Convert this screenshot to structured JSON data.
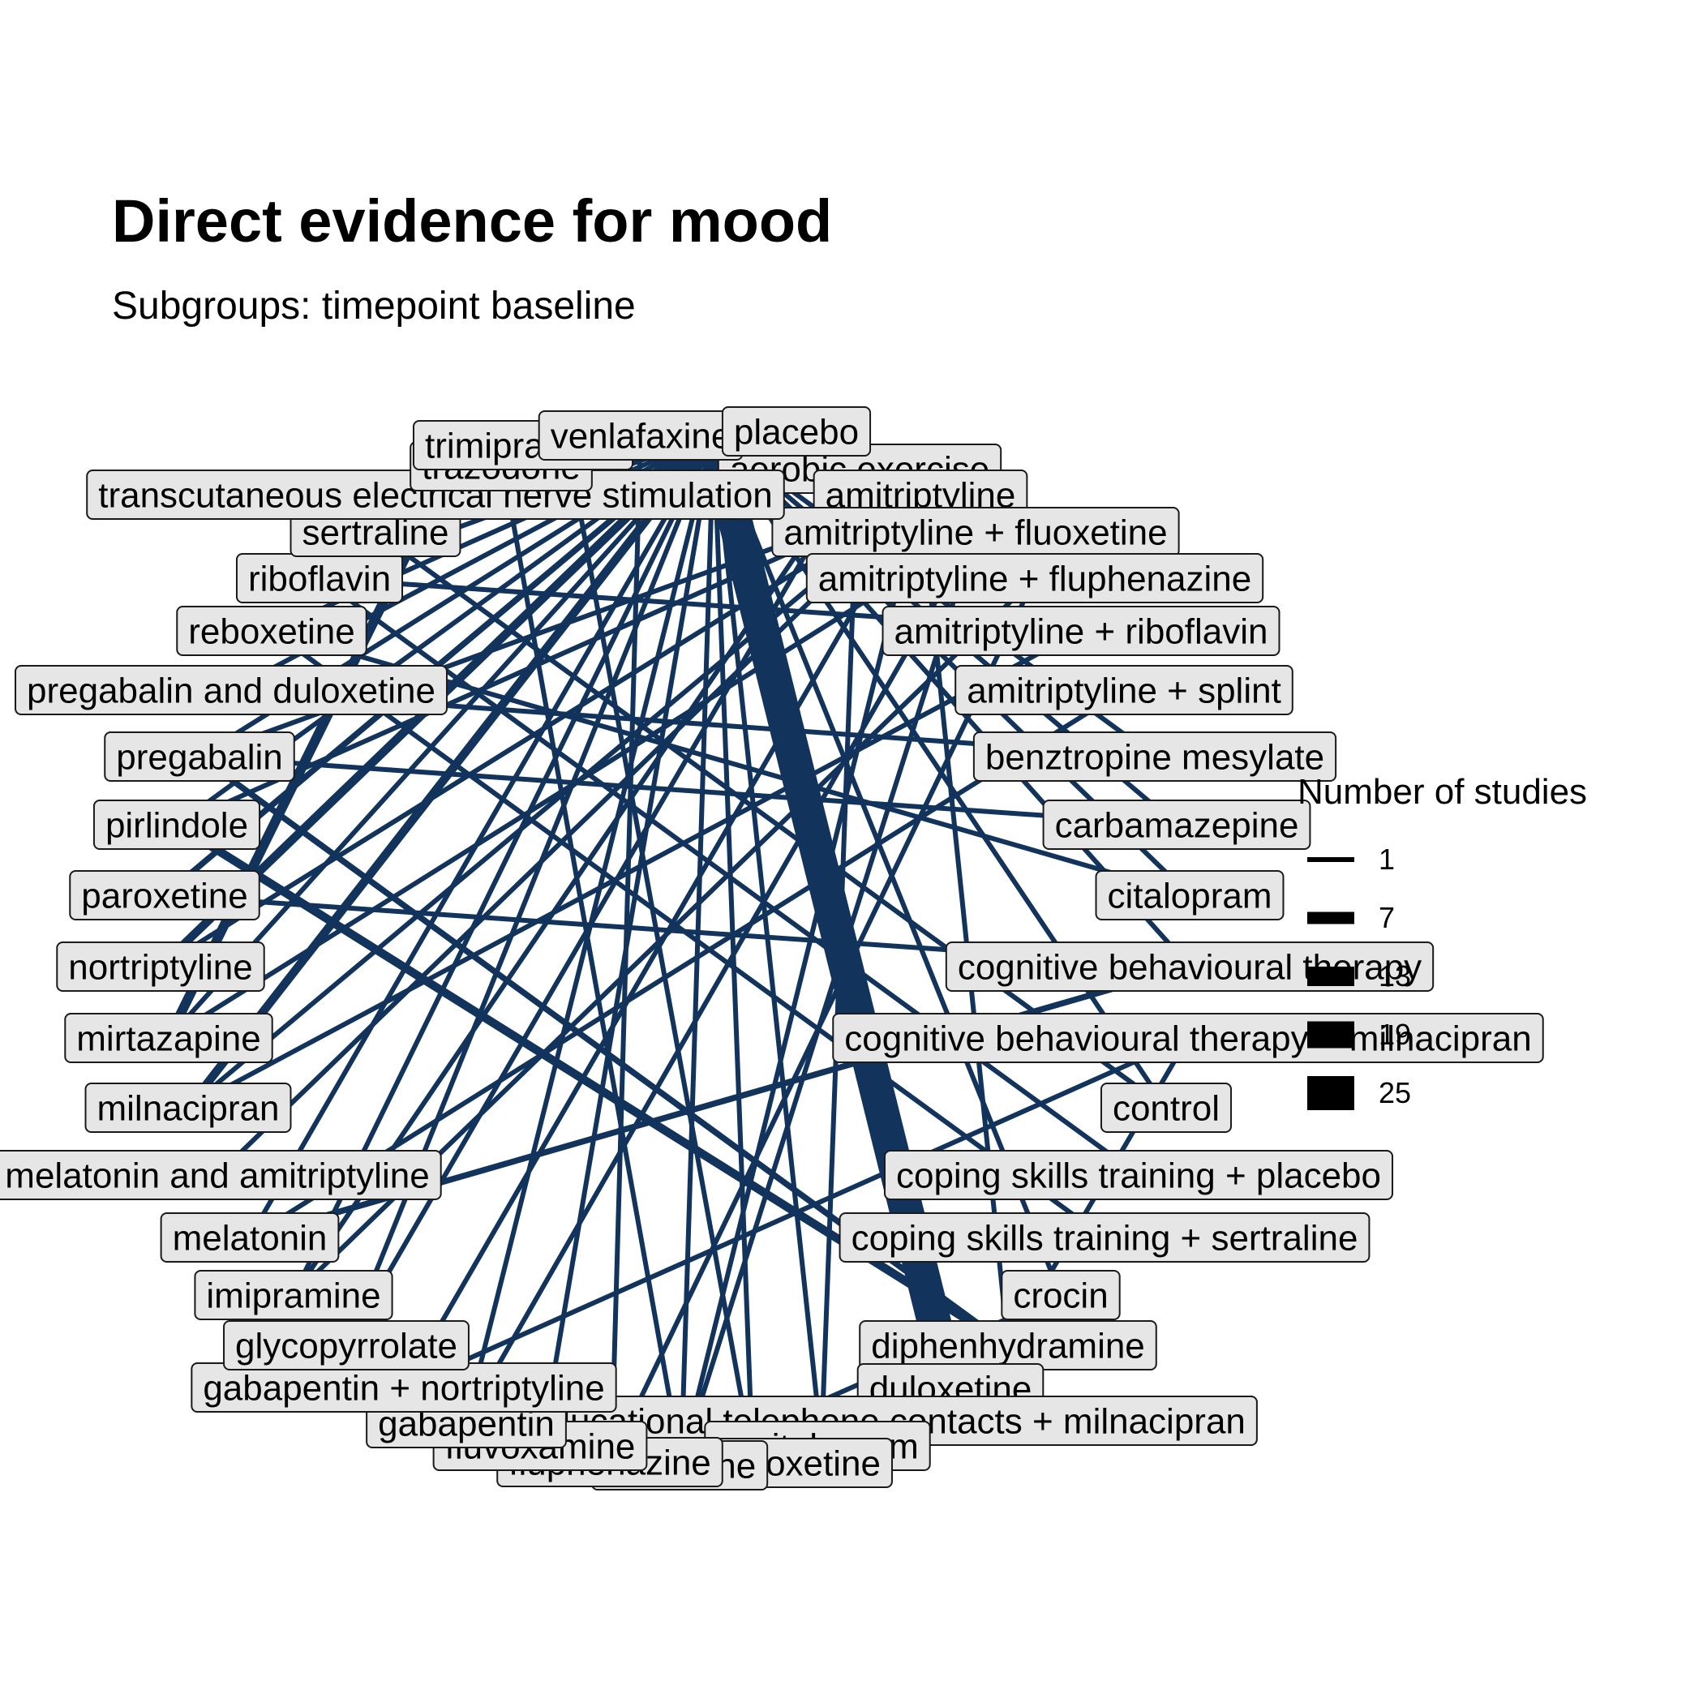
{
  "title": "Direct evidence for mood",
  "subtitle": "Subgroups: timepoint baseline",
  "legend": {
    "title": "Number of studies",
    "entries": [
      "1",
      "7",
      "13",
      "19",
      "25"
    ]
  },
  "colors": {
    "edge": "#12335b",
    "label_fill": "#e6e6e6",
    "label_border": "#1a1a1a"
  },
  "nodes": [
    "aerobic exercise",
    "amitriptyline",
    "amitriptyline + fluoxetine",
    "amitriptyline + fluphenazine",
    "amitriptyline + riboflavin",
    "amitriptyline + splint",
    "benztropine mesylate",
    "carbamazepine",
    "citalopram",
    "cognitive behavioural therapy",
    "cognitive behavioural therapy + milnacipran",
    "control",
    "coping skills training + placebo",
    "coping skills training + sertraline",
    "crocin",
    "diphenhydramine",
    "duloxetine",
    "educational telephone contacts + milnacipran",
    "escitalopram",
    "esreboxetine",
    "fluoxetine",
    "fluphenazine",
    "fluvoxamine",
    "gabapentin",
    "gabapentin + nortriptyline",
    "glycopyrrolate",
    "imipramine",
    "melatonin",
    "melatonin and amitriptyline",
    "milnacipran",
    "mirtazapine",
    "nortriptyline",
    "paroxetine",
    "pirlindole",
    "pregabalin",
    "pregabalin and duloxetine",
    "reboxetine",
    "riboflavin",
    "sertraline",
    "transcutaneous electrical nerve stimulation",
    "trazodone",
    "trimipramine",
    "venlafaxine",
    "placebo"
  ],
  "edges": [
    {
      "from": "placebo",
      "to": "duloxetine",
      "studies": 25
    },
    {
      "from": "placebo",
      "to": "pregabalin",
      "studies": 1
    },
    {
      "from": "placebo",
      "to": "sertraline",
      "studies": 1
    },
    {
      "from": "placebo",
      "to": "riboflavin",
      "studies": 1
    },
    {
      "from": "placebo",
      "to": "reboxetine",
      "studies": 1
    },
    {
      "from": "placebo",
      "to": "pregabalin and duloxetine",
      "studies": 1
    },
    {
      "from": "placebo",
      "to": "pirlindole",
      "studies": 1
    },
    {
      "from": "placebo",
      "to": "paroxetine",
      "studies": 2
    },
    {
      "from": "placebo",
      "to": "nortriptyline",
      "studies": 4
    },
    {
      "from": "placebo",
      "to": "mirtazapine",
      "studies": 1
    },
    {
      "from": "placebo",
      "to": "milnacipran",
      "studies": 4
    },
    {
      "from": "placebo",
      "to": "melatonin",
      "studies": 1
    },
    {
      "from": "placebo",
      "to": "imipramine",
      "studies": 1
    },
    {
      "from": "placebo",
      "to": "glycopyrrolate",
      "studies": 1
    },
    {
      "from": "placebo",
      "to": "gabapentin",
      "studies": 1
    },
    {
      "from": "placebo",
      "to": "fluoxetine",
      "studies": 1
    },
    {
      "from": "placebo",
      "to": "esreboxetine",
      "studies": 1
    },
    {
      "from": "placebo",
      "to": "fluvoxamine",
      "studies": 1
    },
    {
      "from": "placebo",
      "to": "escitalopram",
      "studies": 1
    },
    {
      "from": "placebo",
      "to": "amitriptyline",
      "studies": 1
    },
    {
      "from": "placebo",
      "to": "citalopram",
      "studies": 1
    },
    {
      "from": "placebo",
      "to": "control",
      "studies": 1
    },
    {
      "from": "placebo",
      "to": "trazodone",
      "studies": 1
    },
    {
      "from": "placebo",
      "to": "venlafaxine",
      "studies": 1
    },
    {
      "from": "placebo",
      "to": "aerobic exercise",
      "studies": 1
    },
    {
      "from": "placebo",
      "to": "crocin",
      "studies": 1
    },
    {
      "from": "placebo",
      "to": "cognitive behavioural therapy",
      "studies": 1
    },
    {
      "from": "placebo",
      "to": "carbamazepine",
      "studies": 1
    },
    {
      "from": "placebo",
      "to": "benztropine mesylate",
      "studies": 1
    },
    {
      "from": "amitriptyline",
      "to": "diphenhydramine",
      "studies": 1
    },
    {
      "from": "amitriptyline",
      "to": "pregabalin",
      "studies": 1
    },
    {
      "from": "amitriptyline",
      "to": "pirlindole",
      "studies": 1
    },
    {
      "from": "amitriptyline",
      "to": "fluoxetine",
      "studies": 1
    },
    {
      "from": "amitriptyline",
      "to": "nortriptyline",
      "studies": 1
    },
    {
      "from": "amitriptyline",
      "to": "milnacipran",
      "studies": 1
    },
    {
      "from": "amitriptyline",
      "to": "gabapentin + nortriptyline",
      "studies": 1
    },
    {
      "from": "amitriptyline",
      "to": "melatonin and amitriptyline",
      "studies": 1
    },
    {
      "from": "amitriptyline + fluoxetine",
      "to": "fluoxetine",
      "studies": 1
    },
    {
      "from": "amitriptyline + fluoxetine",
      "to": "mirtazapine",
      "studies": 1
    },
    {
      "from": "amitriptyline + fluphenazine",
      "to": "fluphenazine",
      "studies": 1
    },
    {
      "from": "amitriptyline + fluphenazine",
      "to": "imipramine",
      "studies": 1
    },
    {
      "from": "amitriptyline + riboflavin",
      "to": "riboflavin",
      "studies": 1
    },
    {
      "from": "amitriptyline + riboflavin",
      "to": "milnacipran",
      "studies": 1
    },
    {
      "from": "amitriptyline + splint",
      "to": "melatonin",
      "studies": 1
    },
    {
      "from": "benztropine mesylate",
      "to": "pregabalin and duloxetine",
      "studies": 1
    },
    {
      "from": "carbamazepine",
      "to": "pregabalin",
      "studies": 1
    },
    {
      "from": "citalopram",
      "to": "reboxetine",
      "studies": 1
    },
    {
      "from": "cognitive behavioural therapy",
      "to": "paroxetine",
      "studies": 1
    },
    {
      "from": "cognitive behavioural therapy + milnacipran",
      "to": "gabapentin + nortriptyline",
      "studies": 1
    },
    {
      "from": "cognitive behavioural therapy + milnacipran",
      "to": "diphenhydramine",
      "studies": 1
    },
    {
      "from": "cognitive behavioural therapy",
      "to": "melatonin",
      "studies": 2
    },
    {
      "from": "control",
      "to": "sertraline",
      "studies": 1
    },
    {
      "from": "coping skills training + placebo",
      "to": "riboflavin",
      "studies": 1
    },
    {
      "from": "coping skills training + sertraline",
      "to": "reboxetine",
      "studies": 1
    },
    {
      "from": "crocin",
      "to": "fluoxetine",
      "studies": 1
    },
    {
      "from": "diphenhydramine",
      "to": "pirlindole",
      "studies": 4
    },
    {
      "from": "diphenhydramine",
      "to": "pregabalin",
      "studies": 2
    },
    {
      "from": "educational telephone contacts + milnacipran",
      "to": "fluvoxamine",
      "studies": 1
    },
    {
      "from": "escitalopram",
      "to": "aerobic exercise",
      "studies": 1
    },
    {
      "from": "esreboxetine",
      "to": "trimipramine",
      "studies": 1
    },
    {
      "from": "fluoxetine",
      "to": "trazodone",
      "studies": 1
    },
    {
      "from": "fluphenazine",
      "to": "venlafaxine",
      "studies": 1
    },
    {
      "from": "gabapentin",
      "to": "amitriptyline + fluoxetine",
      "studies": 1
    },
    {
      "from": "glycopyrrolate",
      "to": "aerobic exercise",
      "studies": 1
    },
    {
      "from": "imipramine",
      "to": "aerobic exercise",
      "studies": 1
    },
    {
      "from": "mirtazapine",
      "to": "transcutaneous electrical nerve stimulation",
      "studies": 5
    }
  ]
}
